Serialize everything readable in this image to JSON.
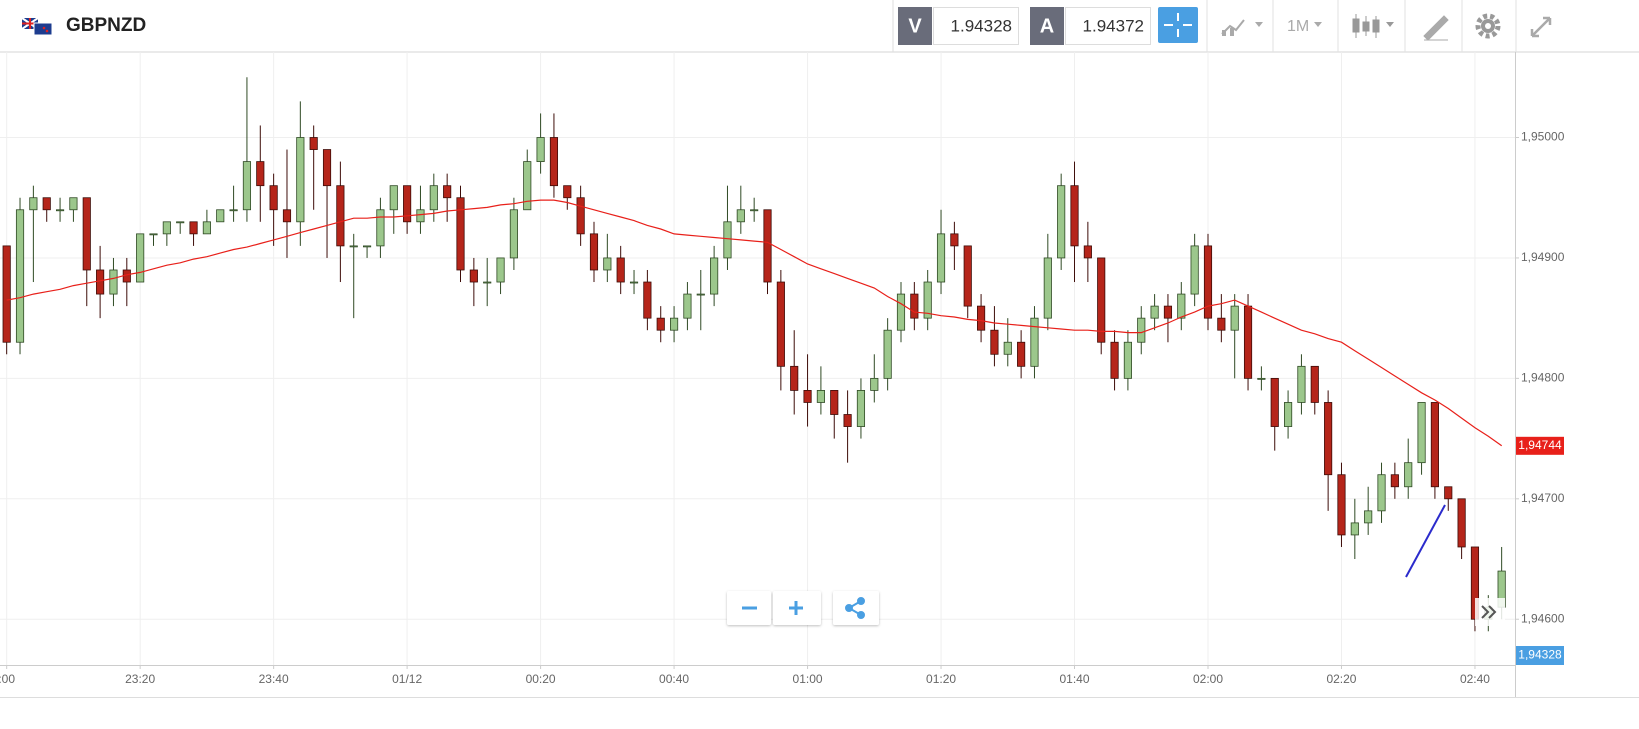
{
  "header": {
    "symbol": "GBPNZD",
    "bid_letter": "V",
    "bid": "1.94328",
    "ask_letter": "A",
    "ask": "1.94372",
    "timeframe": "1M"
  },
  "chart_data": {
    "type": "candlestick",
    "ohlc": [
      [
        1.9491,
        1.9491,
        1.9482,
        1.9483
      ],
      [
        1.9483,
        1.9495,
        1.9482,
        1.9494
      ],
      [
        1.9494,
        1.9496,
        1.9488,
        1.9495
      ],
      [
        1.9495,
        1.9495,
        1.9493,
        1.9494
      ],
      [
        1.9494,
        1.9495,
        1.9493,
        1.9494
      ],
      [
        1.9494,
        1.9495,
        1.9493,
        1.9495
      ],
      [
        1.9495,
        1.9495,
        1.9486,
        1.9489
      ],
      [
        1.9489,
        1.9491,
        1.9485,
        1.9487
      ],
      [
        1.9487,
        1.949,
        1.9486,
        1.9489
      ],
      [
        1.9489,
        1.949,
        1.9486,
        1.9488
      ],
      [
        1.9488,
        1.9492,
        1.9488,
        1.9492
      ],
      [
        1.9492,
        1.9492,
        1.9491,
        1.9492
      ],
      [
        1.9492,
        1.9493,
        1.9491,
        1.9493
      ],
      [
        1.9493,
        1.9493,
        1.9492,
        1.9493
      ],
      [
        1.9493,
        1.9493,
        1.9491,
        1.9492
      ],
      [
        1.9492,
        1.9494,
        1.9492,
        1.9493
      ],
      [
        1.9493,
        1.9494,
        1.9493,
        1.9494
      ],
      [
        1.9494,
        1.9496,
        1.9493,
        1.9494
      ],
      [
        1.9494,
        1.9505,
        1.9493,
        1.9498
      ],
      [
        1.9498,
        1.9501,
        1.9493,
        1.9496
      ],
      [
        1.9496,
        1.9497,
        1.9491,
        1.9494
      ],
      [
        1.9494,
        1.9499,
        1.949,
        1.9493
      ],
      [
        1.9493,
        1.9503,
        1.9491,
        1.95
      ],
      [
        1.95,
        1.9501,
        1.9494,
        1.9499
      ],
      [
        1.9499,
        1.9499,
        1.949,
        1.9496
      ],
      [
        1.9496,
        1.9498,
        1.9488,
        1.9491
      ],
      [
        1.9491,
        1.9492,
        1.9485,
        1.9491
      ],
      [
        1.9491,
        1.9491,
        1.949,
        1.9491
      ],
      [
        1.9491,
        1.9495,
        1.949,
        1.9494
      ],
      [
        1.9494,
        1.9496,
        1.9492,
        1.9496
      ],
      [
        1.9496,
        1.9496,
        1.9492,
        1.9493
      ],
      [
        1.9493,
        1.9496,
        1.9492,
        1.9494
      ],
      [
        1.9494,
        1.9497,
        1.9493,
        1.9496
      ],
      [
        1.9496,
        1.9497,
        1.9493,
        1.9495
      ],
      [
        1.9495,
        1.9496,
        1.9488,
        1.9489
      ],
      [
        1.9489,
        1.949,
        1.9486,
        1.9488
      ],
      [
        1.9488,
        1.949,
        1.9486,
        1.9488
      ],
      [
        1.9488,
        1.949,
        1.9487,
        1.949
      ],
      [
        1.949,
        1.9495,
        1.9489,
        1.9494
      ],
      [
        1.9494,
        1.9499,
        1.9494,
        1.9498
      ],
      [
        1.9498,
        1.9502,
        1.9497,
        1.95
      ],
      [
        1.95,
        1.9502,
        1.9495,
        1.9496
      ],
      [
        1.9496,
        1.9496,
        1.9494,
        1.9495
      ],
      [
        1.9495,
        1.9496,
        1.9491,
        1.9492
      ],
      [
        1.9492,
        1.9493,
        1.9488,
        1.9489
      ],
      [
        1.9489,
        1.9492,
        1.9488,
        1.949
      ],
      [
        1.949,
        1.9491,
        1.9487,
        1.9488
      ],
      [
        1.9488,
        1.9489,
        1.9487,
        1.9488
      ],
      [
        1.9488,
        1.9489,
        1.9484,
        1.9485
      ],
      [
        1.9485,
        1.9486,
        1.9483,
        1.9484
      ],
      [
        1.9484,
        1.9486,
        1.9483,
        1.9485
      ],
      [
        1.9485,
        1.9488,
        1.9484,
        1.9487
      ],
      [
        1.9487,
        1.9489,
        1.9484,
        1.9487
      ],
      [
        1.9487,
        1.9491,
        1.9486,
        1.949
      ],
      [
        1.949,
        1.9496,
        1.9489,
        1.9493
      ],
      [
        1.9493,
        1.9496,
        1.9492,
        1.9494
      ],
      [
        1.9494,
        1.9495,
        1.9493,
        1.9494
      ],
      [
        1.9494,
        1.9494,
        1.9487,
        1.9488
      ],
      [
        1.9488,
        1.9489,
        1.9479,
        1.9481
      ],
      [
        1.9481,
        1.9484,
        1.9477,
        1.9479
      ],
      [
        1.9479,
        1.9482,
        1.9476,
        1.9478
      ],
      [
        1.9478,
        1.9481,
        1.9477,
        1.9479
      ],
      [
        1.9479,
        1.9479,
        1.9475,
        1.9477
      ],
      [
        1.9477,
        1.9479,
        1.9473,
        1.9476
      ],
      [
        1.9476,
        1.948,
        1.9475,
        1.9479
      ],
      [
        1.9479,
        1.9482,
        1.9478,
        1.948
      ],
      [
        1.948,
        1.9485,
        1.9479,
        1.9484
      ],
      [
        1.9484,
        1.9488,
        1.9483,
        1.9487
      ],
      [
        1.9487,
        1.9488,
        1.9484,
        1.9485
      ],
      [
        1.9485,
        1.9489,
        1.9484,
        1.9488
      ],
      [
        1.9488,
        1.9494,
        1.9487,
        1.9492
      ],
      [
        1.9492,
        1.9493,
        1.9489,
        1.9491
      ],
      [
        1.9491,
        1.9491,
        1.9485,
        1.9486
      ],
      [
        1.9486,
        1.9487,
        1.9483,
        1.9484
      ],
      [
        1.9484,
        1.9486,
        1.9481,
        1.9482
      ],
      [
        1.9482,
        1.9485,
        1.9481,
        1.9483
      ],
      [
        1.9483,
        1.9484,
        1.948,
        1.9481
      ],
      [
        1.9481,
        1.9486,
        1.948,
        1.9485
      ],
      [
        1.9485,
        1.9492,
        1.9484,
        1.949
      ],
      [
        1.949,
        1.9497,
        1.9489,
        1.9496
      ],
      [
        1.9496,
        1.9498,
        1.9488,
        1.9491
      ],
      [
        1.9491,
        1.9493,
        1.9488,
        1.949
      ],
      [
        1.949,
        1.949,
        1.9482,
        1.9483
      ],
      [
        1.9483,
        1.9484,
        1.9479,
        1.948
      ],
      [
        1.948,
        1.9484,
        1.9479,
        1.9483
      ],
      [
        1.9483,
        1.9486,
        1.9482,
        1.9485
      ],
      [
        1.9485,
        1.9487,
        1.9484,
        1.9486
      ],
      [
        1.9486,
        1.9487,
        1.9483,
        1.9485
      ],
      [
        1.9485,
        1.9488,
        1.9484,
        1.9487
      ],
      [
        1.9487,
        1.9492,
        1.9486,
        1.9491
      ],
      [
        1.9491,
        1.9492,
        1.9484,
        1.9485
      ],
      [
        1.9485,
        1.9487,
        1.9483,
        1.9484
      ],
      [
        1.9484,
        1.9487,
        1.948,
        1.9486
      ],
      [
        1.9486,
        1.9487,
        1.9479,
        1.948
      ],
      [
        1.948,
        1.9481,
        1.9479,
        1.948
      ],
      [
        1.948,
        1.948,
        1.9474,
        1.9476
      ],
      [
        1.9476,
        1.9479,
        1.9475,
        1.9478
      ],
      [
        1.9478,
        1.9482,
        1.9477,
        1.9481
      ],
      [
        1.9481,
        1.9481,
        1.9477,
        1.9478
      ],
      [
        1.9478,
        1.9479,
        1.9469,
        1.9472
      ],
      [
        1.9472,
        1.9473,
        1.9466,
        1.9467
      ],
      [
        1.9467,
        1.947,
        1.9465,
        1.9468
      ],
      [
        1.9468,
        1.9471,
        1.9467,
        1.9469
      ],
      [
        1.9469,
        1.9473,
        1.9468,
        1.9472
      ],
      [
        1.9472,
        1.9473,
        1.947,
        1.9471
      ],
      [
        1.9471,
        1.9475,
        1.947,
        1.9473
      ],
      [
        1.9473,
        1.9478,
        1.9472,
        1.9478
      ],
      [
        1.9478,
        1.9478,
        1.947,
        1.9471
      ],
      [
        1.9471,
        1.9471,
        1.9469,
        1.947
      ],
      [
        1.947,
        1.947,
        1.9465,
        1.9466
      ],
      [
        1.9466,
        1.9466,
        1.9459,
        1.946
      ],
      [
        1.946,
        1.9462,
        1.9459,
        1.9461
      ],
      [
        1.9461,
        1.9466,
        1.946,
        1.9464
      ]
    ],
    "up_color": "#9cc78c",
    "down_color": "#b5251a",
    "ma": {
      "color": "#e8201a",
      "values": [
        1.94865,
        1.94867,
        1.9487,
        1.94872,
        1.94874,
        1.94877,
        1.94879,
        1.94881,
        1.94883,
        1.94886,
        1.94888,
        1.94891,
        1.94894,
        1.94896,
        1.94899,
        1.94901,
        1.94904,
        1.94907,
        1.94909,
        1.94912,
        1.94915,
        1.94918,
        1.94921,
        1.94924,
        1.94927,
        1.9493,
        1.94933,
        1.94933,
        1.94934,
        1.94934,
        1.94935,
        1.94936,
        1.94937,
        1.94939,
        1.9494,
        1.94941,
        1.94942,
        1.94944,
        1.94945,
        1.94947,
        1.94948,
        1.94948,
        1.94946,
        1.94943,
        1.9494,
        1.94937,
        1.94934,
        1.94931,
        1.94927,
        1.94924,
        1.9492,
        1.94919,
        1.94918,
        1.94917,
        1.94916,
        1.94915,
        1.94914,
        1.94913,
        1.94907,
        1.94901,
        1.94895,
        1.94891,
        1.94887,
        1.94883,
        1.94879,
        1.94875,
        1.94868,
        1.94862,
        1.94855,
        1.94854,
        1.94852,
        1.94851,
        1.94849,
        1.94848,
        1.94846,
        1.94845,
        1.94844,
        1.94843,
        1.94842,
        1.94841,
        1.9484,
        1.9484,
        1.94839,
        1.94839,
        1.94838,
        1.94838,
        1.94842,
        1.94846,
        1.94851,
        1.94855,
        1.9486,
        1.94862,
        1.94865,
        1.9486,
        1.94855,
        1.9485,
        1.94845,
        1.9484,
        1.94837,
        1.94833,
        1.9483,
        1.94823,
        1.94816,
        1.94809,
        1.94802,
        1.94795,
        1.94788,
        1.94782,
        1.94775,
        1.94767,
        1.94759,
        1.94752,
        1.94744
      ]
    },
    "ma_label": "1,94744",
    "bid_label": "1,94328",
    "xlim": [
      -0.5,
      113
    ],
    "ylim": [
      1.94562,
      1.95071
    ],
    "xticks": [
      {
        "value": 0,
        "label": ":00"
      },
      {
        "value": 10,
        "label": "23:20"
      },
      {
        "value": 20,
        "label": "23:40"
      },
      {
        "value": 30,
        "label": "01/12"
      },
      {
        "value": 40,
        "label": "00:20"
      },
      {
        "value": 50,
        "label": "00:40"
      },
      {
        "value": 60,
        "label": "01:00"
      },
      {
        "value": 70,
        "label": "01:20"
      },
      {
        "value": 80,
        "label": "01:40"
      },
      {
        "value": 90,
        "label": "02:00"
      },
      {
        "value": 100,
        "label": "02:20"
      },
      {
        "value": 110,
        "label": "02:40"
      }
    ],
    "yticks": [
      {
        "value": 1.946,
        "label": "1,94600"
      },
      {
        "value": 1.947,
        "label": "1,94700"
      },
      {
        "value": 1.948,
        "label": "1,94800"
      },
      {
        "value": 1.949,
        "label": "1,94900"
      },
      {
        "value": 1.95,
        "label": "1,95000"
      }
    ],
    "grid": true
  }
}
